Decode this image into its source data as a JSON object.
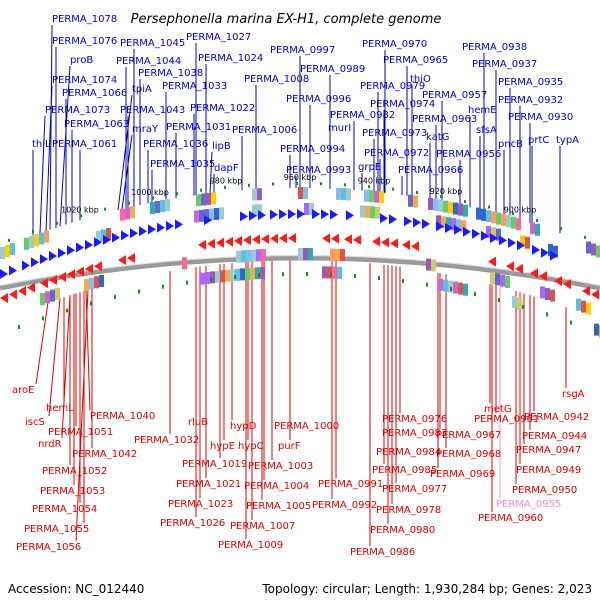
{
  "title": "Persephonella marina EX-H1, complete genome",
  "accession_label": "Accession: NC_012440",
  "topology_label": "Topology: circular; Length: 1,930,284 bp; Genes: 2,023",
  "colors": {
    "top_labels": "#0000cc",
    "bottom_labels": "#dd0000",
    "highlight_label": "#ff88cc",
    "forward_genes": "#1a1aff",
    "reverse_genes": "#ff1a1a",
    "backbone": "#888888",
    "tick_marks": "#1a8a1a"
  },
  "scale_ticks": [
    "1020 kbp",
    "1000 kbp",
    "980 kbp",
    "960 kbp",
    "940 kbp",
    "920 kbp",
    "900 kbp"
  ],
  "top_labels": [
    "PERMA_1078",
    "PERMA_1076",
    "proB",
    "PERMA_1074",
    "PERMA_1066",
    "PERMA_1073",
    "PERMA_1063",
    "thiL",
    "PERMA_1061",
    "PERMA_1045",
    "PERMA_1044",
    "PERMA_1038",
    "tpiA",
    "PERMA_1043",
    "mraY",
    "PERMA_1036",
    "PERMA_1035",
    "PERMA_1027",
    "PERMA_1024",
    "PERMA_1033",
    "PERMA_1022",
    "PERMA_1031",
    "lipB",
    "dapF",
    "PERMA_1008",
    "PERMA_1006",
    "PERMA_0997",
    "PERMA_0989",
    "PERMA_0996",
    "murI",
    "PERMA_0994",
    "PERMA_0993",
    "PERMA_0970",
    "PERMA_0965",
    "PERMA_0979",
    "thiO",
    "PERMA_0974",
    "PERMA_0982",
    "PERMA_0973",
    "katG",
    "grpE",
    "PERMA_0972",
    "PERMA_0966",
    "PERMA_0963",
    "PERMA_0957",
    "PERMA_0956",
    "PERMA_0938",
    "PERMA_0937",
    "PERMA_0935",
    "hemE",
    "PERMA_0932",
    "sfsA",
    "PERMA_0930",
    "pncB",
    "prtC",
    "typA"
  ],
  "bottom_labels": [
    "aroE",
    "iscS",
    "hemL",
    "nrdR",
    "PERMA_1040",
    "PERMA_1051",
    "PERMA_1042",
    "PERMA_1052",
    "PERMA_1053",
    "PERMA_1054",
    "PERMA_1055",
    "PERMA_1056",
    "rluB",
    "PERMA_1032",
    "hypD",
    "hypE",
    "hypC",
    "PERMA_1000",
    "PERMA_1019",
    "purF",
    "PERMA_1003",
    "PERMA_1021",
    "PERMA_1004",
    "PERMA_1023",
    "PERMA_1005",
    "PERMA_1026",
    "PERMA_1007",
    "PERMA_1009",
    "PERMA_0976",
    "PERMA_0983",
    "PERMA_0967",
    "PERMA_0984",
    "PERMA_0968",
    "PERMA_0985",
    "PERMA_0969",
    "PERMA_0991",
    "PERMA_0977",
    "PERMA_0992",
    "PERMA_0978",
    "PERMA_0980",
    "PERMA_0986",
    "metG",
    "PERMA_0961",
    "PERMA_0942",
    "PERMA_0944",
    "PERMA_0947",
    "PERMA_0949",
    "PERMA_0950",
    "PERMA_0955",
    "PERMA_0960",
    "rsgA"
  ],
  "highlighted_label": "PERMA_0955"
}
